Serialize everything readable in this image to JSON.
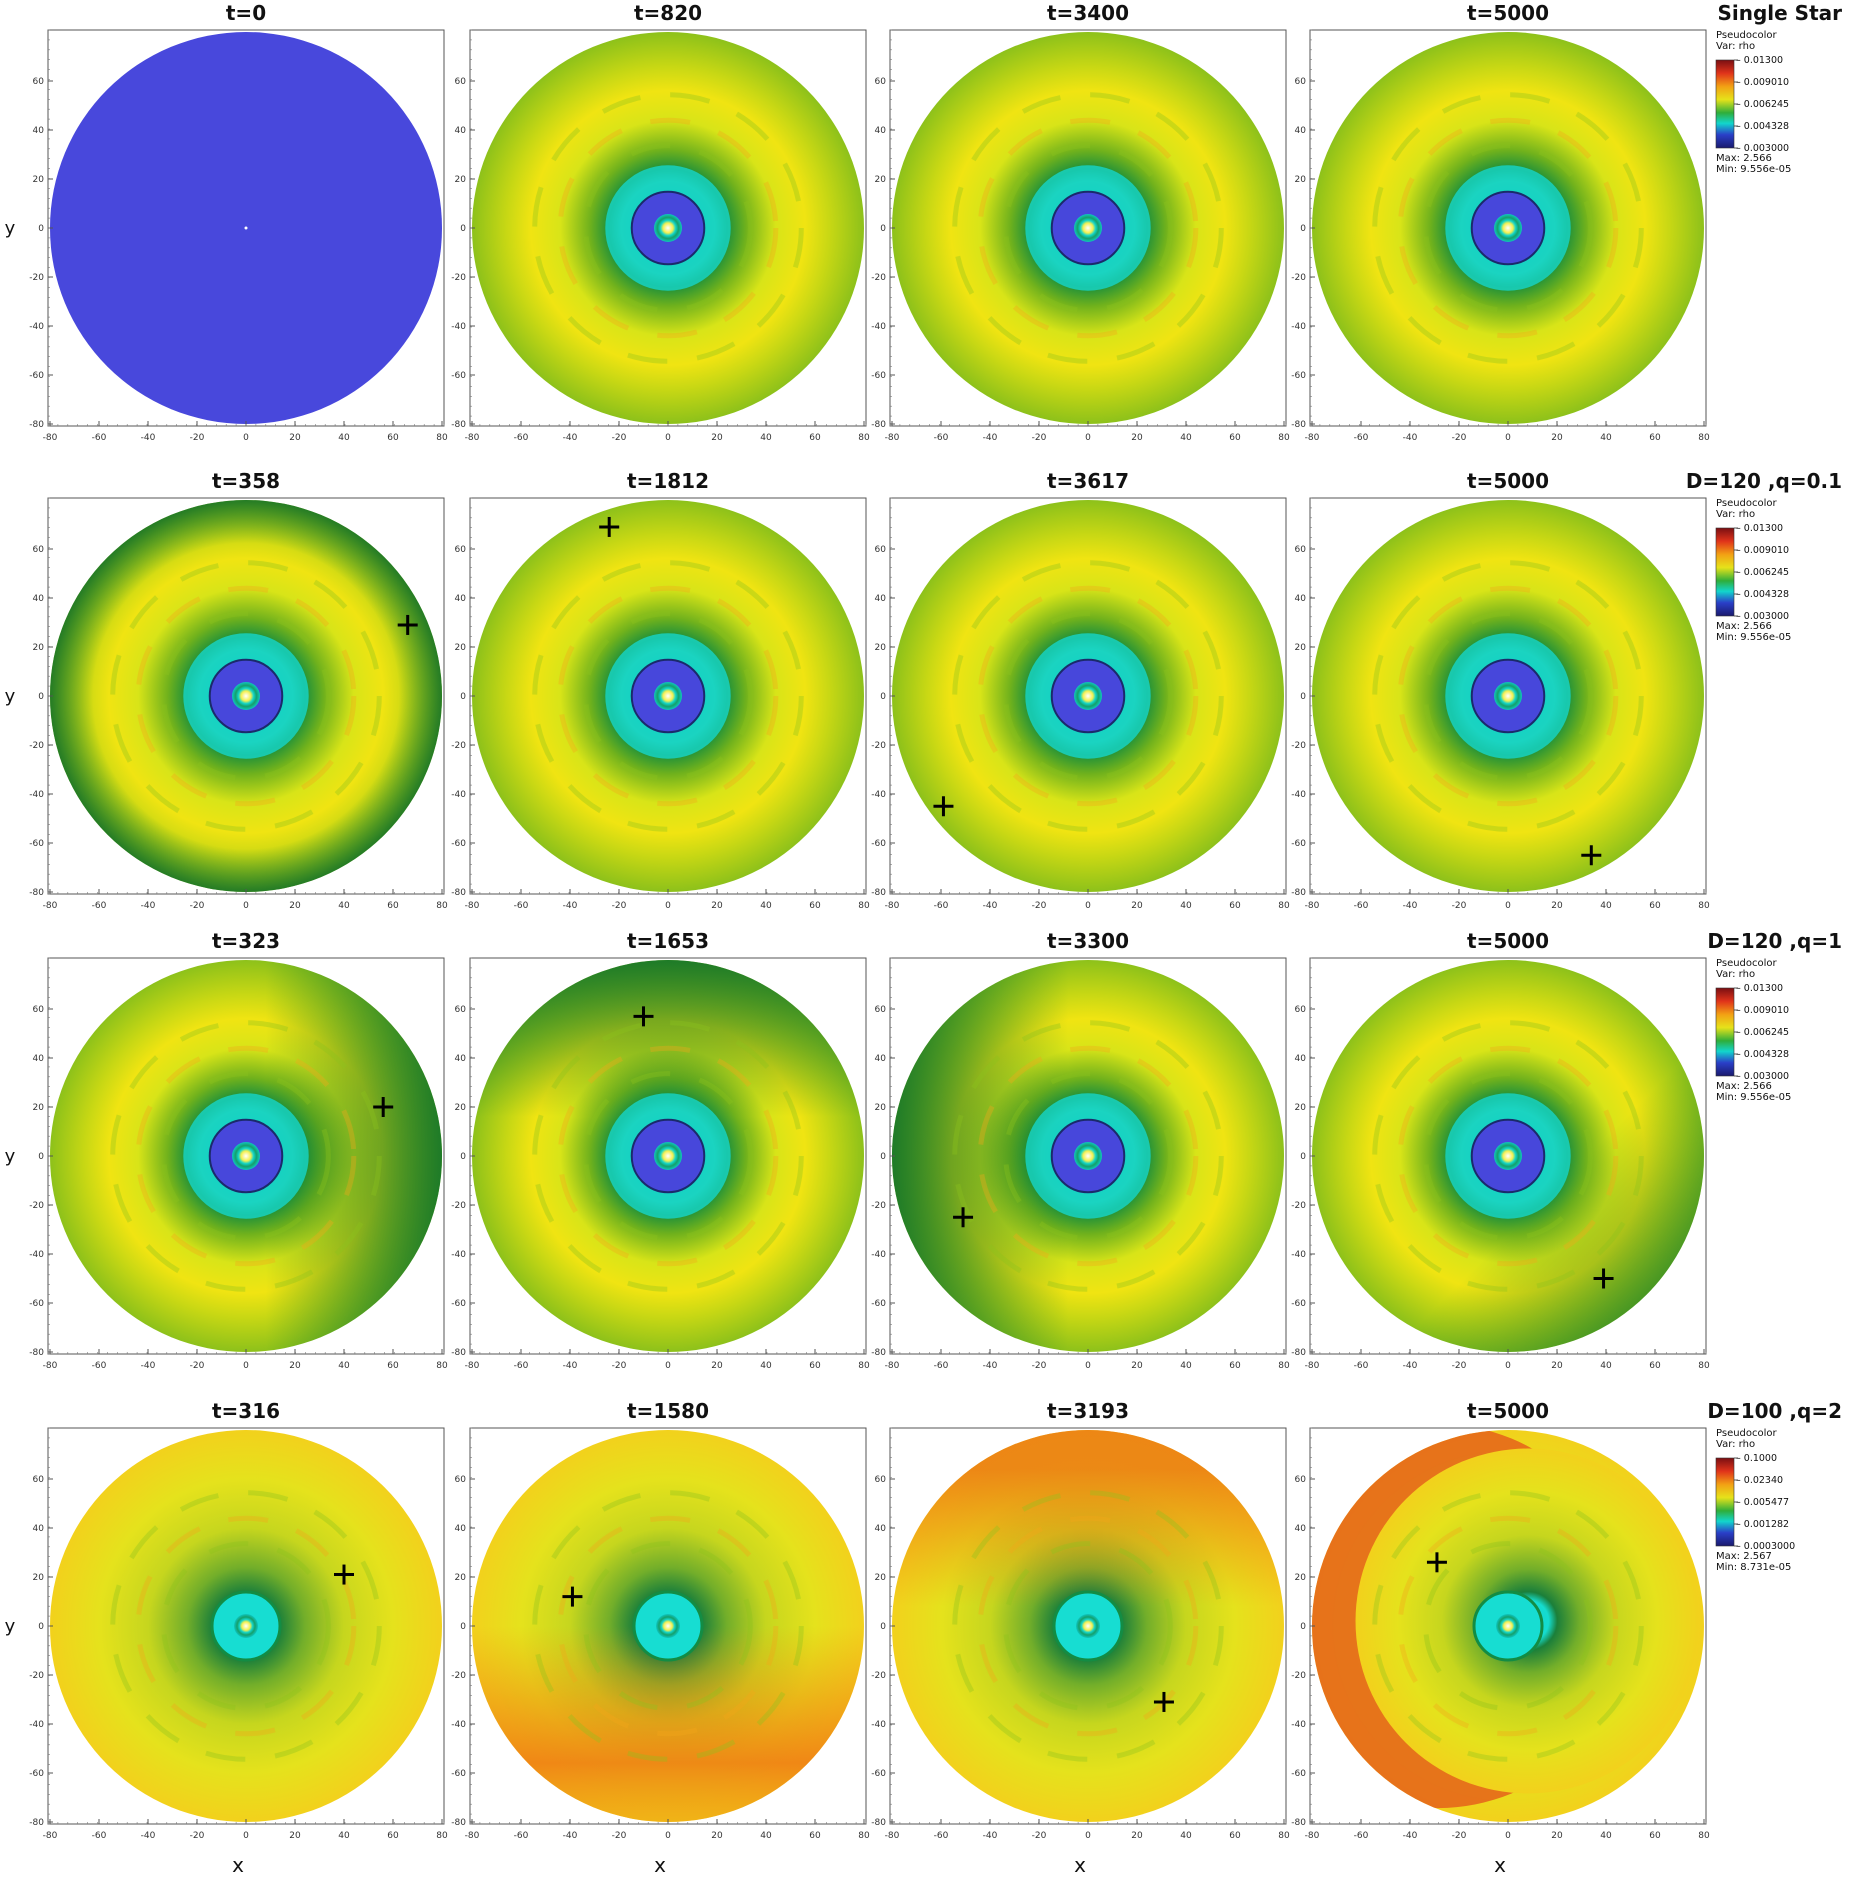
{
  "rows": [
    {
      "label": "Single Star",
      "legend": {
        "title": "Pseudocolor",
        "var": "Var: rho",
        "ticks": [
          "0.01300",
          "0.009010",
          "0.006245",
          "0.004328",
          "0.003000"
        ],
        "max": "Max:  2.566",
        "min": "Min:  9.556e-05",
        "log": false
      },
      "panels": [
        {
          "t": "t=0",
          "style": "uniform"
        },
        {
          "t": "t=820",
          "style": "disk"
        },
        {
          "t": "t=3400",
          "style": "disk"
        },
        {
          "t": "t=5000",
          "style": "disk"
        }
      ]
    },
    {
      "label": "D=120 ,q=0.1",
      "legend": {
        "title": "Pseudocolor",
        "var": "Var: rho",
        "ticks": [
          "0.01300",
          "0.009010",
          "0.006245",
          "0.004328",
          "0.003000"
        ],
        "max": "Max:  2.566",
        "min": "Min:  9.556e-05",
        "log": false
      },
      "panels": [
        {
          "t": "t=358",
          "style": "disk",
          "marker": [
            66,
            29
          ],
          "shade": "rim"
        },
        {
          "t": "t=1812",
          "style": "disk",
          "marker": [
            -24,
            69
          ]
        },
        {
          "t": "t=3617",
          "style": "disk",
          "marker": [
            -59,
            -45
          ]
        },
        {
          "t": "t=5000",
          "style": "disk",
          "marker": [
            34,
            -65
          ]
        }
      ]
    },
    {
      "label": "D=120 ,q=1",
      "legend": {
        "title": "Pseudocolor",
        "var": "Var: rho",
        "ticks": [
          "0.01300",
          "0.009010",
          "0.006245",
          "0.004328",
          "0.003000"
        ],
        "max": "Max:  2.566",
        "min": "Min:  9.556e-05",
        "log": false
      },
      "panels": [
        {
          "t": "t=323",
          "style": "disk",
          "marker": [
            56,
            20
          ],
          "shade": "right"
        },
        {
          "t": "t=1653",
          "style": "disk",
          "marker": [
            -10,
            57
          ],
          "shade": "top"
        },
        {
          "t": "t=3300",
          "style": "disk",
          "marker": [
            -51,
            -25
          ],
          "shade": "left"
        },
        {
          "t": "t=5000",
          "style": "disk",
          "marker": [
            39,
            -50
          ],
          "shade": "bottomright"
        }
      ]
    },
    {
      "label": "D=100 ,q=2",
      "legend": {
        "title": "Pseudocolor",
        "var": "Var: rho",
        "ticks": [
          "0.1000",
          "0.02340",
          "0.005477",
          "0.001282",
          "0.0003000"
        ],
        "max": "Max:  2.567",
        "min": "Min:  8.731e-05",
        "log": true
      },
      "panels": [
        {
          "t": "t=316",
          "style": "flat",
          "marker": [
            40,
            21
          ]
        },
        {
          "t": "t=1580",
          "style": "flat",
          "marker": [
            -39,
            12
          ],
          "shade": "bottomorange"
        },
        {
          "t": "t=3193",
          "style": "flat",
          "marker": [
            31,
            -31
          ],
          "shade": "toporange"
        },
        {
          "t": "t=5000",
          "style": "flat",
          "marker": [
            -29,
            26
          ],
          "shade": "leftcrescent"
        }
      ]
    }
  ],
  "axis": {
    "x_ticks": [
      "-80",
      "-60",
      "-40",
      "-20",
      "0",
      "20",
      "40",
      "60",
      "80"
    ],
    "y_ticks": [
      "60",
      "40",
      "20",
      "0",
      "-20",
      "-40",
      "-60",
      "-80"
    ],
    "xlabel": "x",
    "ylabel": "y"
  }
}
